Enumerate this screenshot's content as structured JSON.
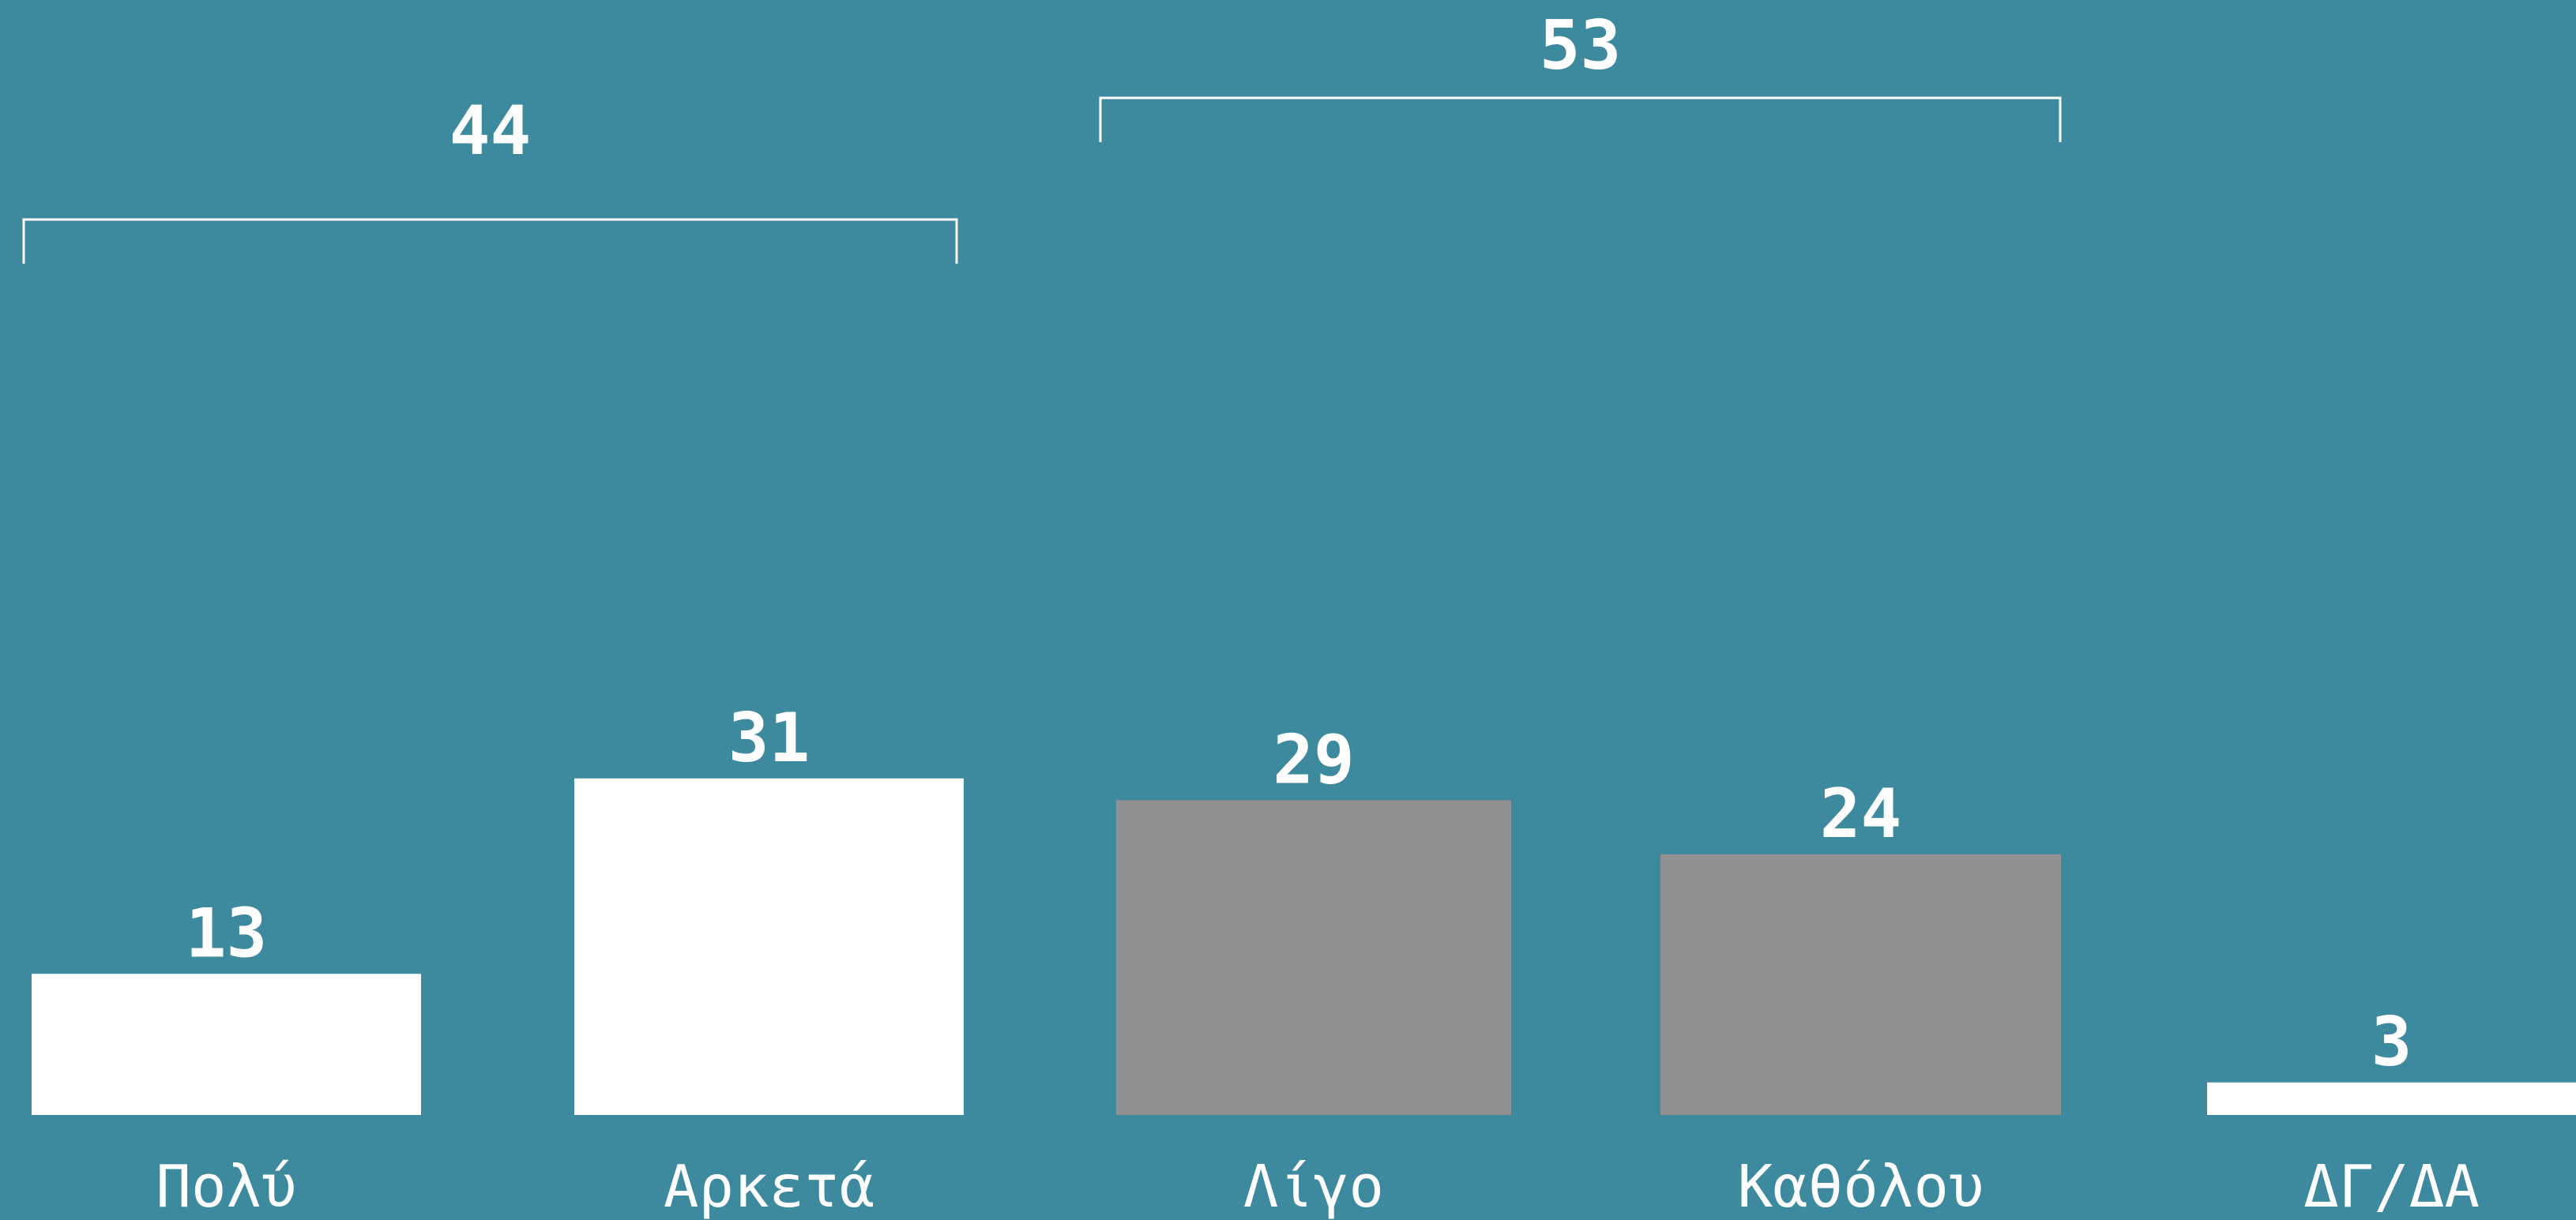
{
  "chart_data": {
    "type": "bar",
    "categories": [
      "Πολύ",
      "Αρκετά",
      "Λίγο",
      "Καθόλου",
      "ΔΓ/ΔΑ"
    ],
    "values": [
      13,
      31,
      29,
      24,
      3
    ],
    "bar_colors": [
      "#ffffff",
      "#ffffff",
      "#919191",
      "#919191",
      "#ffffff"
    ],
    "groups": [
      {
        "label": "44",
        "categories": [
          "Πολύ",
          "Αρκετά"
        ]
      },
      {
        "label": "53",
        "categories": [
          "Λίγο",
          "Καθόλου"
        ]
      }
    ],
    "title": "",
    "xlabel": "",
    "ylabel": "",
    "grid": false,
    "legend": "none"
  },
  "colors": {
    "background": "#3d899d",
    "positive_bars": "#ffffff",
    "negative_bars": "#919191",
    "text": "#ffffff"
  }
}
